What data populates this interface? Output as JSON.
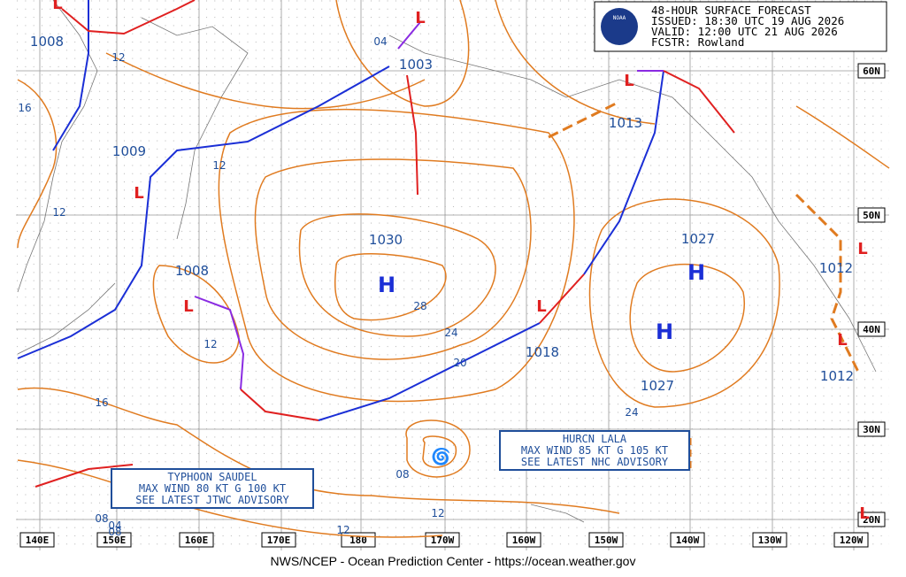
{
  "header": {
    "lines": [
      "48-HOUR SURFACE FORECAST",
      "ISSUED: 18:30 UTC 19 AUG 2026",
      "VALID:  12:00 UTC 21 AUG 2026",
      "FCSTR:  Rowland"
    ],
    "logo": "NOAA"
  },
  "symbols": {
    "high": "H",
    "low": "L"
  },
  "pressures": [
    "1008",
    "1003",
    "1009",
    "1030",
    "1013",
    "1027",
    "1008",
    "1018",
    "1027",
    "1012",
    "1012"
  ],
  "isobar_labels": [
    "12",
    "04",
    "16",
    "12",
    "12",
    "28",
    "24",
    "20",
    "12",
    "16",
    "08",
    "24",
    "08",
    "12",
    "12",
    "08",
    "04"
  ],
  "longitudes": [
    "140E",
    "150E",
    "160E",
    "170E",
    "180",
    "170W",
    "160W",
    "150W",
    "140W",
    "130W",
    "120W"
  ],
  "latitudes": [
    "60N",
    "50N",
    "40N",
    "30N",
    "20N"
  ],
  "typhoon_advisory": [
    "TYPHOON SAUDEL",
    "MAX WIND 80 KT G 100 KT",
    "SEE LATEST JTWC ADVISORY"
  ],
  "hurricane_advisory": [
    "HURCN LALA",
    "MAX WIND 85 KT G 105 KT",
    "SEE LATEST NHC ADVISORY"
  ],
  "footer": "NWS/NCEP - Ocean Prediction Center - https://ocean.weather.gov"
}
